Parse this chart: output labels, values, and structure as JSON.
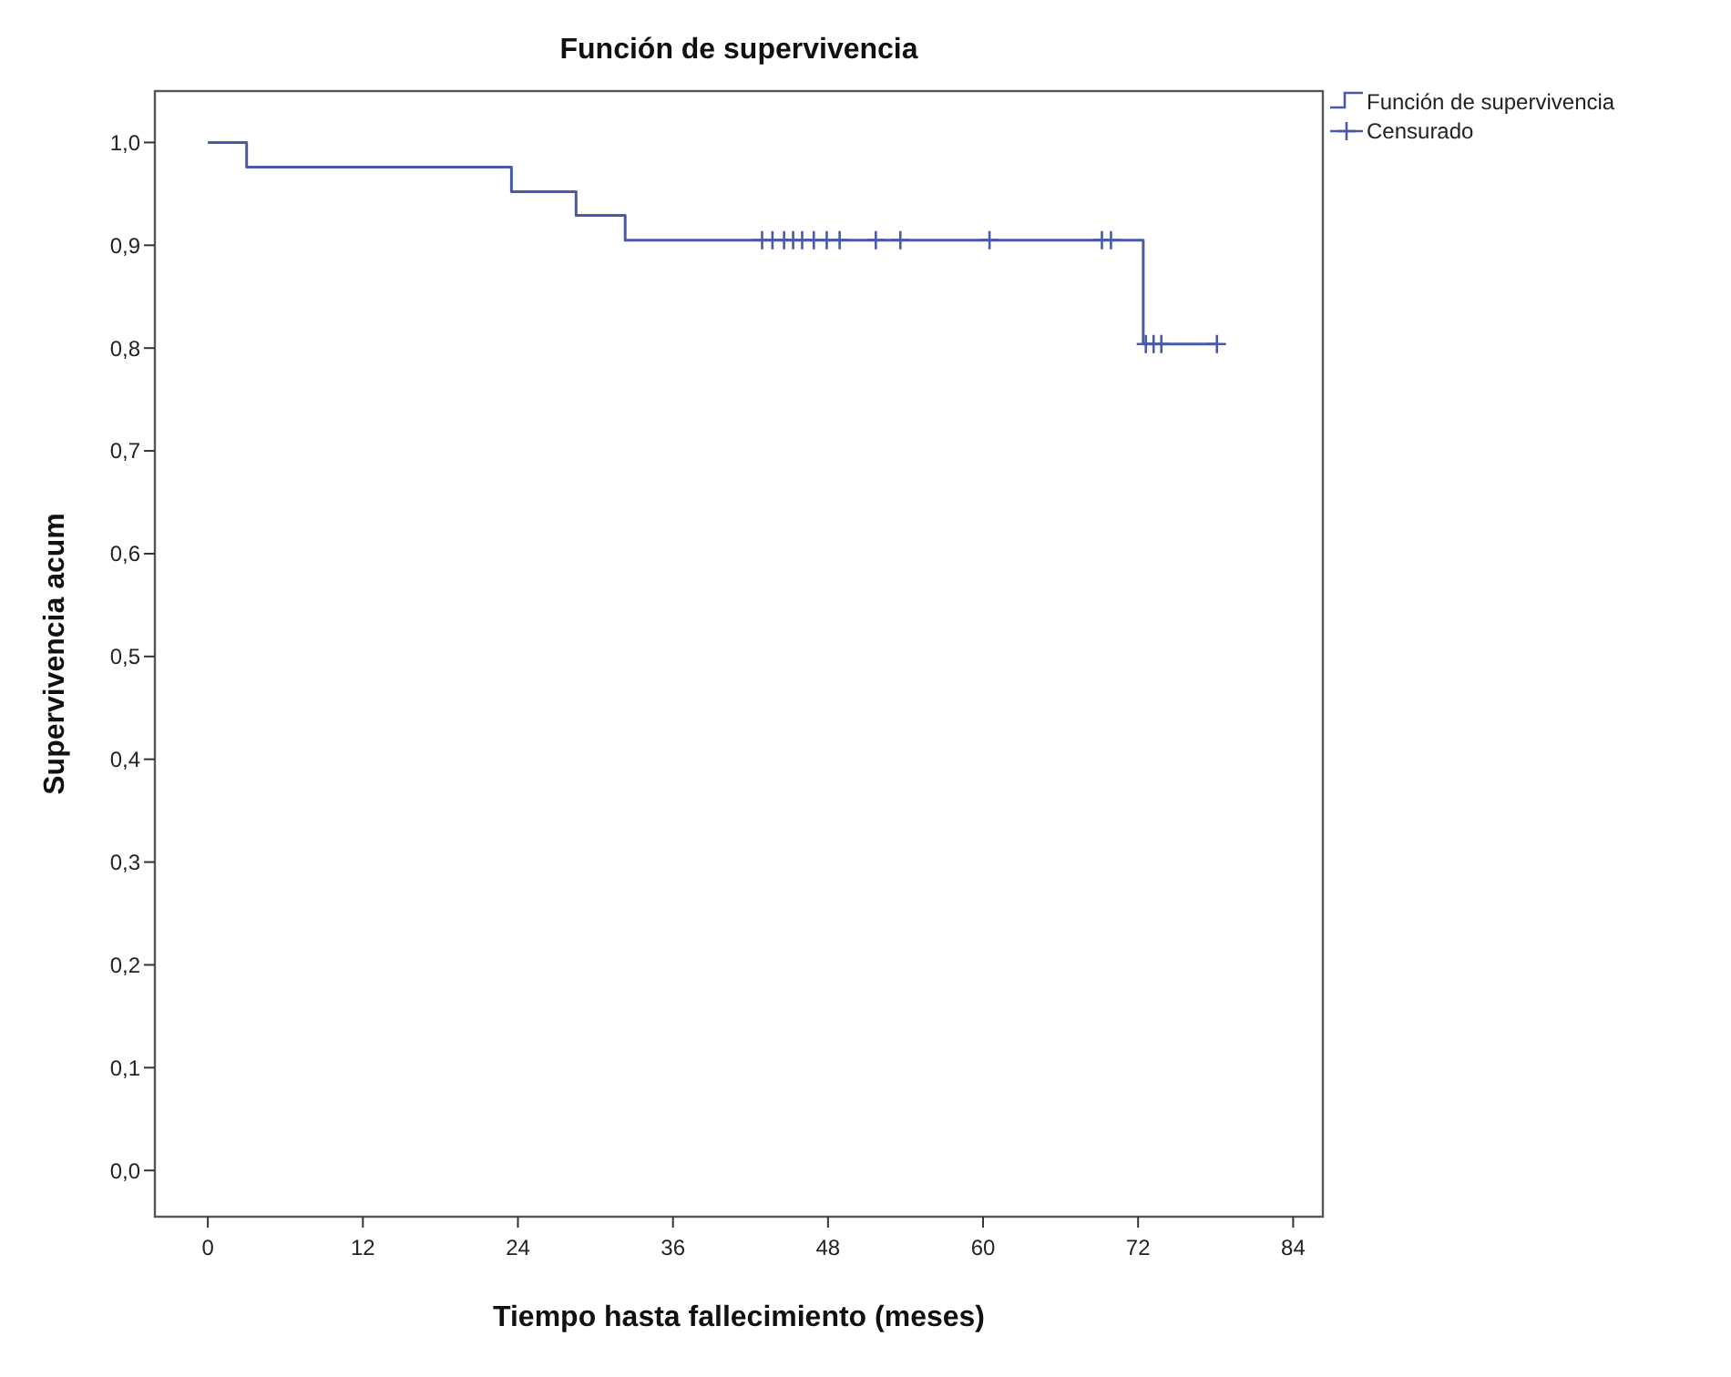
{
  "chart_data": {
    "type": "step",
    "title": "Función de supervivencia",
    "xlabel": "Tiempo hasta fallecimiento (meses)",
    "ylabel": "Supervivencia acum",
    "xlim": [
      -4.1,
      86.3
    ],
    "xticks": [
      0,
      12,
      24,
      36,
      48,
      60,
      72,
      84
    ],
    "ylim": [
      -0.045,
      1.05
    ],
    "yticks": [
      {
        "value": 0,
        "label": "0,0"
      },
      {
        "value": 0.1,
        "label": "0,1"
      },
      {
        "value": 0.2,
        "label": "0,2"
      },
      {
        "value": 0.3,
        "label": "0,3"
      },
      {
        "value": 0.4,
        "label": "0,4"
      },
      {
        "value": 0.5,
        "label": "0,5"
      },
      {
        "value": 0.6,
        "label": "0,6"
      },
      {
        "value": 0.7,
        "label": "0,7"
      },
      {
        "value": 0.8,
        "label": "0,8"
      },
      {
        "value": 0.9,
        "label": "0,9"
      },
      {
        "value": 1,
        "label": "1,0"
      }
    ],
    "grid": false,
    "legend": "top right",
    "series": [
      {
        "name": "Función de supervivencia",
        "color": "#4a5aa8",
        "marker": "none",
        "x": [
          0,
          3,
          23.5,
          28.5,
          32.3,
          72.4,
          78.1
        ],
        "values": [
          1,
          0.976,
          0.952,
          0.929,
          0.905,
          0.804,
          0.804
        ]
      },
      {
        "name": "Censurado",
        "type": "scatter",
        "color": "#4a5aa8",
        "marker": "cross",
        "x": [
          42.9,
          43.7,
          44.6,
          45.3,
          46,
          46.9,
          47.9,
          48.9,
          51.7,
          53.6,
          60.5,
          69.2,
          69.9,
          72.6,
          73.2,
          73.8,
          78.1
        ],
        "values": [
          0.905,
          0.905,
          0.905,
          0.905,
          0.905,
          0.905,
          0.905,
          0.905,
          0.905,
          0.905,
          0.905,
          0.905,
          0.905,
          0.804,
          0.804,
          0.804,
          0.804
        ]
      }
    ]
  }
}
